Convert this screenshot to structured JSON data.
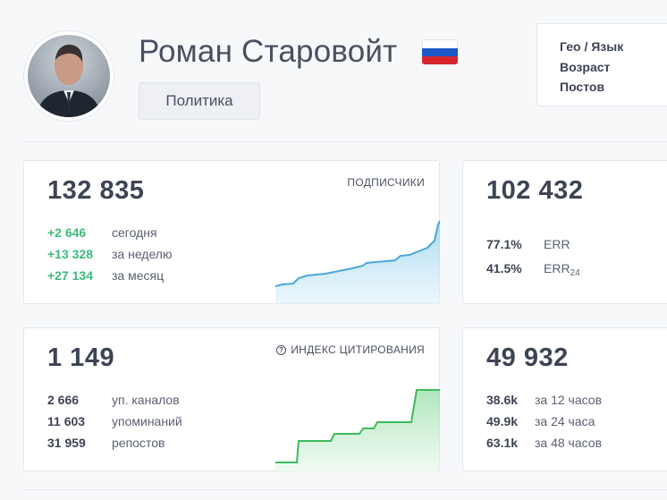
{
  "profile": {
    "name": "Роман Старовойт",
    "flag_icon": "russia-flag-icon",
    "category": "Политика"
  },
  "meta": {
    "geo_label": "Гео / Язык",
    "age_label": "Возраст",
    "posts_label": "Постов"
  },
  "subscribers": {
    "label": "ПОДПИСЧИКИ",
    "total": "132 835",
    "rows": [
      {
        "value": "+2 646",
        "label": "сегодня"
      },
      {
        "value": "+13 328",
        "label": "за неделю"
      },
      {
        "value": "+27 134",
        "label": "за месяц"
      }
    ],
    "color": "#4aa8d8"
  },
  "reach": {
    "total": "102 432",
    "err": {
      "value": "77.1%",
      "label": "ERR"
    },
    "err24": {
      "value": "41.5%",
      "label": "ERR",
      "sub": "24"
    }
  },
  "citation": {
    "label": "ИНДЕКС ЦИТИРОВАНИЯ",
    "total": "1 149",
    "rows": [
      {
        "value": "2 666",
        "label": "уп. каналов"
      },
      {
        "value": "11 603",
        "label": "упоминаний"
      },
      {
        "value": "31 959",
        "label": "репостов"
      }
    ],
    "color": "#3dbb5c"
  },
  "views": {
    "total": "49 932",
    "rows": [
      {
        "value": "38.6k",
        "label": "за 12 часов"
      },
      {
        "value": "49.9k",
        "label": "за 24 часа"
      },
      {
        "value": "63.1k",
        "label": "за 48 часов"
      }
    ]
  },
  "colors": {
    "accent_green": "#3dbb7b",
    "text_dark": "#3d4453"
  }
}
